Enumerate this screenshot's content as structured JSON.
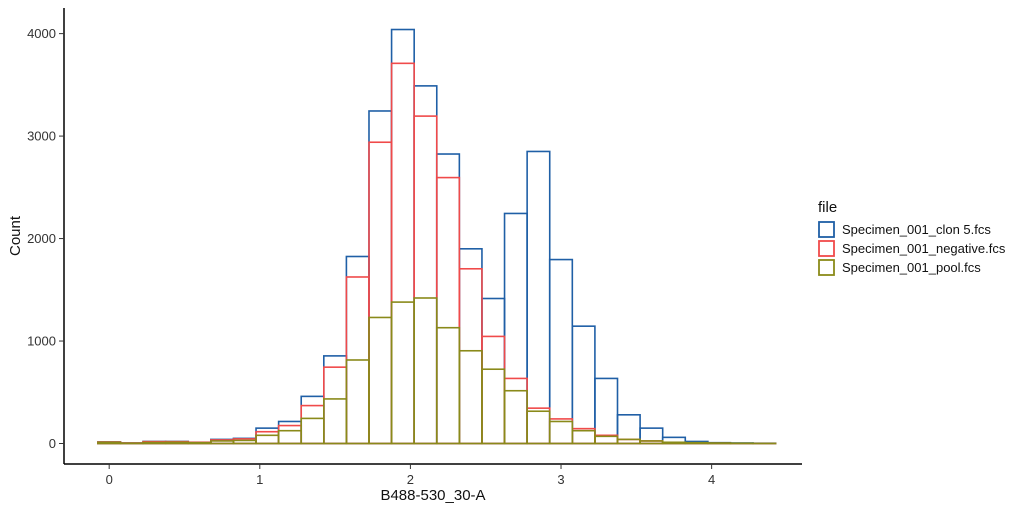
{
  "chart_data": {
    "type": "histogram",
    "xlabel": "B488-530_30-A",
    "ylabel": "Count",
    "xlim": [
      -0.3,
      4.6
    ],
    "ylim": [
      -200,
      4250
    ],
    "xticks": [
      0,
      1,
      2,
      3,
      4
    ],
    "yticks": [
      0,
      1000,
      2000,
      3000,
      4000
    ],
    "grid": false,
    "legend_title": "file",
    "legend_position": "right",
    "bin_width": 0.15,
    "bin_centers": [
      0.0,
      0.15,
      0.3,
      0.45,
      0.6,
      0.75,
      0.9,
      1.05,
      1.2,
      1.35,
      1.5,
      1.65,
      1.8,
      1.95,
      2.1,
      2.25,
      2.4,
      2.55,
      2.7,
      2.85,
      3.0,
      3.15,
      3.3,
      3.45,
      3.6,
      3.75,
      3.9,
      4.05,
      4.2,
      4.35
    ],
    "series": [
      {
        "name": "Specimen_001_clon 5.fcs",
        "color": "#1f5fa6",
        "values": [
          15,
          5,
          20,
          20,
          12,
          40,
          50,
          150,
          215,
          460,
          855,
          1825,
          3245,
          4040,
          3490,
          2825,
          1900,
          1415,
          2245,
          2850,
          1795,
          1145,
          635,
          280,
          150,
          60,
          20,
          8,
          5,
          3
        ]
      },
      {
        "name": "Specimen_001_negative.fcs",
        "color": "#f04a4a",
        "values": [
          15,
          5,
          18,
          18,
          12,
          35,
          45,
          115,
          175,
          370,
          745,
          1625,
          2940,
          3710,
          3195,
          2595,
          1705,
          1045,
          635,
          345,
          240,
          145,
          80,
          40,
          25,
          10,
          5,
          3,
          2,
          1
        ]
      },
      {
        "name": "Specimen_001_pool.fcs",
        "color": "#8a8a1a",
        "values": [
          12,
          3,
          10,
          12,
          8,
          25,
          30,
          80,
          125,
          245,
          435,
          815,
          1230,
          1380,
          1420,
          1130,
          905,
          725,
          515,
          315,
          215,
          125,
          70,
          40,
          25,
          12,
          8,
          5,
          3,
          1
        ]
      }
    ]
  }
}
